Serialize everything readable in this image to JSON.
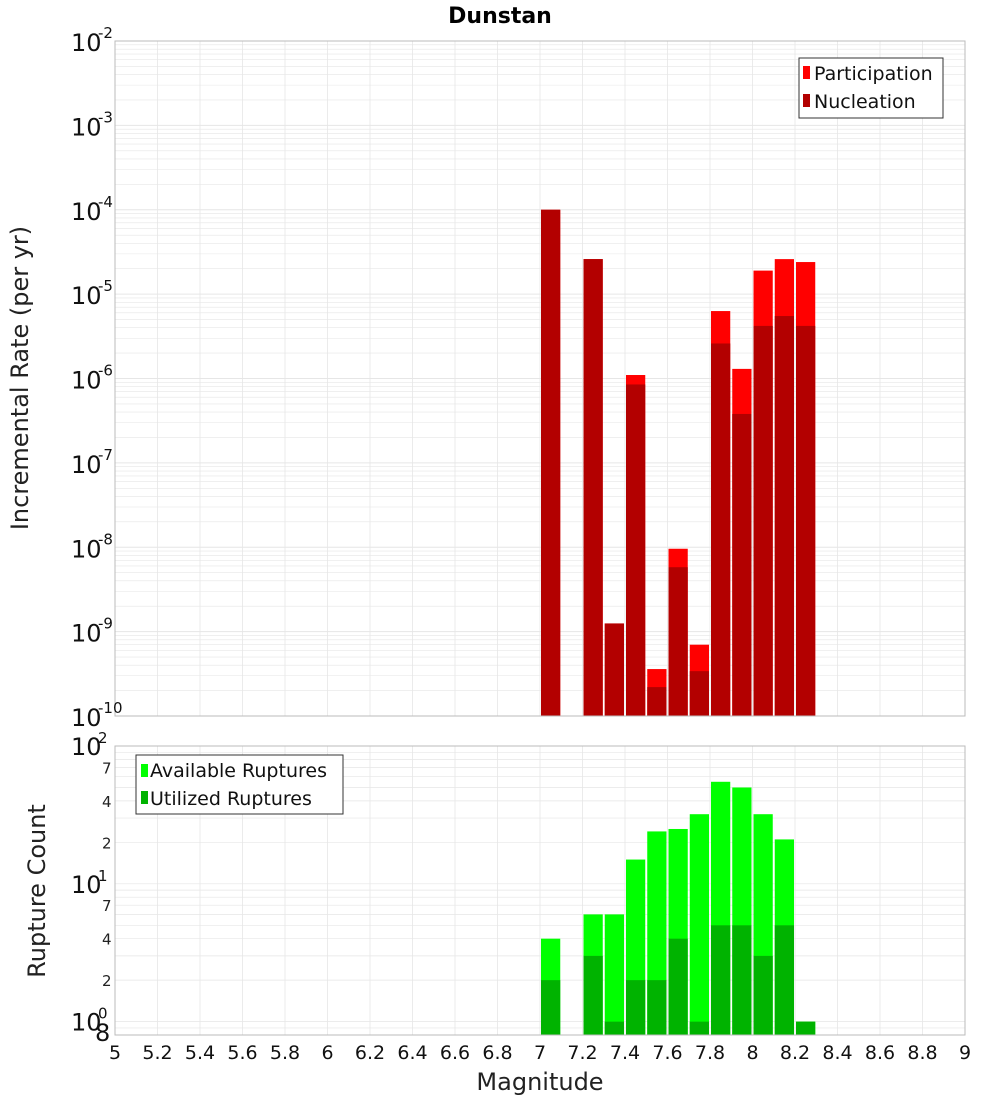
{
  "title": "Dunstan",
  "colors": {
    "participation": "#ff0000",
    "nucleation": "#b30000",
    "available": "#00ff00",
    "utilized": "#00b300",
    "grid": "#e6e6e6",
    "frame": "#bbbbbb"
  },
  "chart_data": [
    {
      "type": "bar",
      "scale": "log",
      "ylabel": "Incremental Rate (per yr)",
      "xlabel": "",
      "xlim": [
        5,
        9
      ],
      "ylim": [
        1e-10,
        0.01
      ],
      "y_tick_exponents": [
        "-2",
        "-3",
        "-4",
        "-5",
        "-6",
        "-7",
        "-8",
        "-9",
        "-10"
      ],
      "y_tick_base": "10",
      "grid": true,
      "legend": {
        "placement": "top-right",
        "entries": [
          "Participation",
          "Nucleation"
        ]
      },
      "x": [
        7.05,
        7.25,
        7.35,
        7.45,
        7.55,
        7.65,
        7.75,
        7.85,
        7.95,
        8.05,
        8.15,
        8.25
      ],
      "series": [
        {
          "name": "Participation",
          "values": [
            0.0001,
            2.6e-05,
            1.25e-09,
            1.1e-06,
            3.6e-10,
            9.6e-09,
            7e-10,
            6.3e-06,
            1.3e-06,
            1.9e-05,
            2.6e-05,
            2.4e-05
          ]
        },
        {
          "name": "Nucleation",
          "values": [
            0.0001,
            2.6e-05,
            1.25e-09,
            8.5e-07,
            2.2e-10,
            5.8e-09,
            3.4e-10,
            2.6e-06,
            3.8e-07,
            4.2e-06,
            5.5e-06,
            4.2e-06
          ]
        }
      ]
    },
    {
      "type": "bar",
      "scale": "log",
      "ylabel": "Rupture Count",
      "xlabel": "Magnitude",
      "xlim": [
        5,
        9
      ],
      "ylim": [
        0.8,
        100
      ],
      "x_ticks": [
        "5",
        "5.2",
        "5.4",
        "5.6",
        "5.8",
        "6",
        "6.2",
        "6.4",
        "6.6",
        "6.8",
        "7",
        "7.2",
        "7.4",
        "7.6",
        "7.8",
        "8",
        "8.2",
        "8.4",
        "8.6",
        "8.8",
        "9"
      ],
      "y_major": [
        {
          "value": 100,
          "base": "10",
          "exp": "2"
        },
        {
          "value": 10,
          "base": "10",
          "exp": "1"
        },
        {
          "value": 1,
          "base": "10",
          "exp": "0"
        }
      ],
      "y_minor": [
        {
          "value": 70,
          "label": "7"
        },
        {
          "value": 40,
          "label": "4"
        },
        {
          "value": 20,
          "label": "2"
        },
        {
          "value": 7,
          "label": "7"
        },
        {
          "value": 4,
          "label": "4"
        },
        {
          "value": 2,
          "label": "2"
        },
        {
          "value": 0.8,
          "label": "8"
        }
      ],
      "grid": true,
      "legend": {
        "placement": "top-left",
        "entries": [
          "Available Ruptures",
          "Utilized Ruptures"
        ]
      },
      "x": [
        7.05,
        7.25,
        7.35,
        7.45,
        7.55,
        7.65,
        7.75,
        7.85,
        7.95,
        8.05,
        8.15,
        8.25
      ],
      "series": [
        {
          "name": "Available Ruptures",
          "values": [
            4,
            6,
            6,
            15,
            24,
            25,
            32,
            55,
            50,
            32,
            21,
            1
          ]
        },
        {
          "name": "Utilized Ruptures",
          "values": [
            2,
            3,
            1,
            2,
            2,
            4,
            1,
            5,
            5,
            3,
            5,
            1
          ]
        }
      ]
    }
  ]
}
